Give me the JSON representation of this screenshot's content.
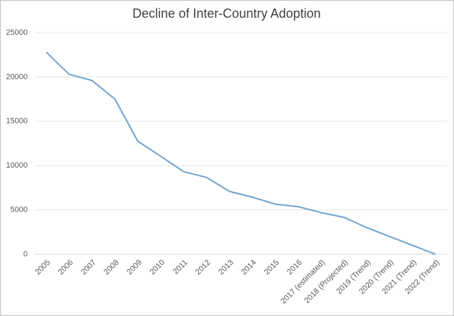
{
  "chart_data": {
    "type": "line",
    "title": "Decline of Inter-Country Adoption",
    "categories": [
      "2005",
      "2006",
      "2007",
      "2008",
      "2009",
      "2010",
      "2011",
      "2012",
      "2013",
      "2014",
      "2015",
      "2016",
      "2017 (estimated)",
      "2018 (Projected)",
      "2019 (Trend)",
      "2020 (Trend)",
      "2021 (Trend)",
      "2022 (Trend)"
    ],
    "values": [
      22800,
      20300,
      19600,
      17500,
      12750,
      11050,
      9320,
      8670,
      7090,
      6440,
      5650,
      5370,
      4700,
      4170,
      3000,
      2000,
      1000,
      0
    ],
    "color": "#6fa2cf",
    "ylim": [
      0,
      25000
    ],
    "yticks": [
      0,
      5000,
      10000,
      15000,
      20000,
      25000
    ],
    "grid": true
  }
}
